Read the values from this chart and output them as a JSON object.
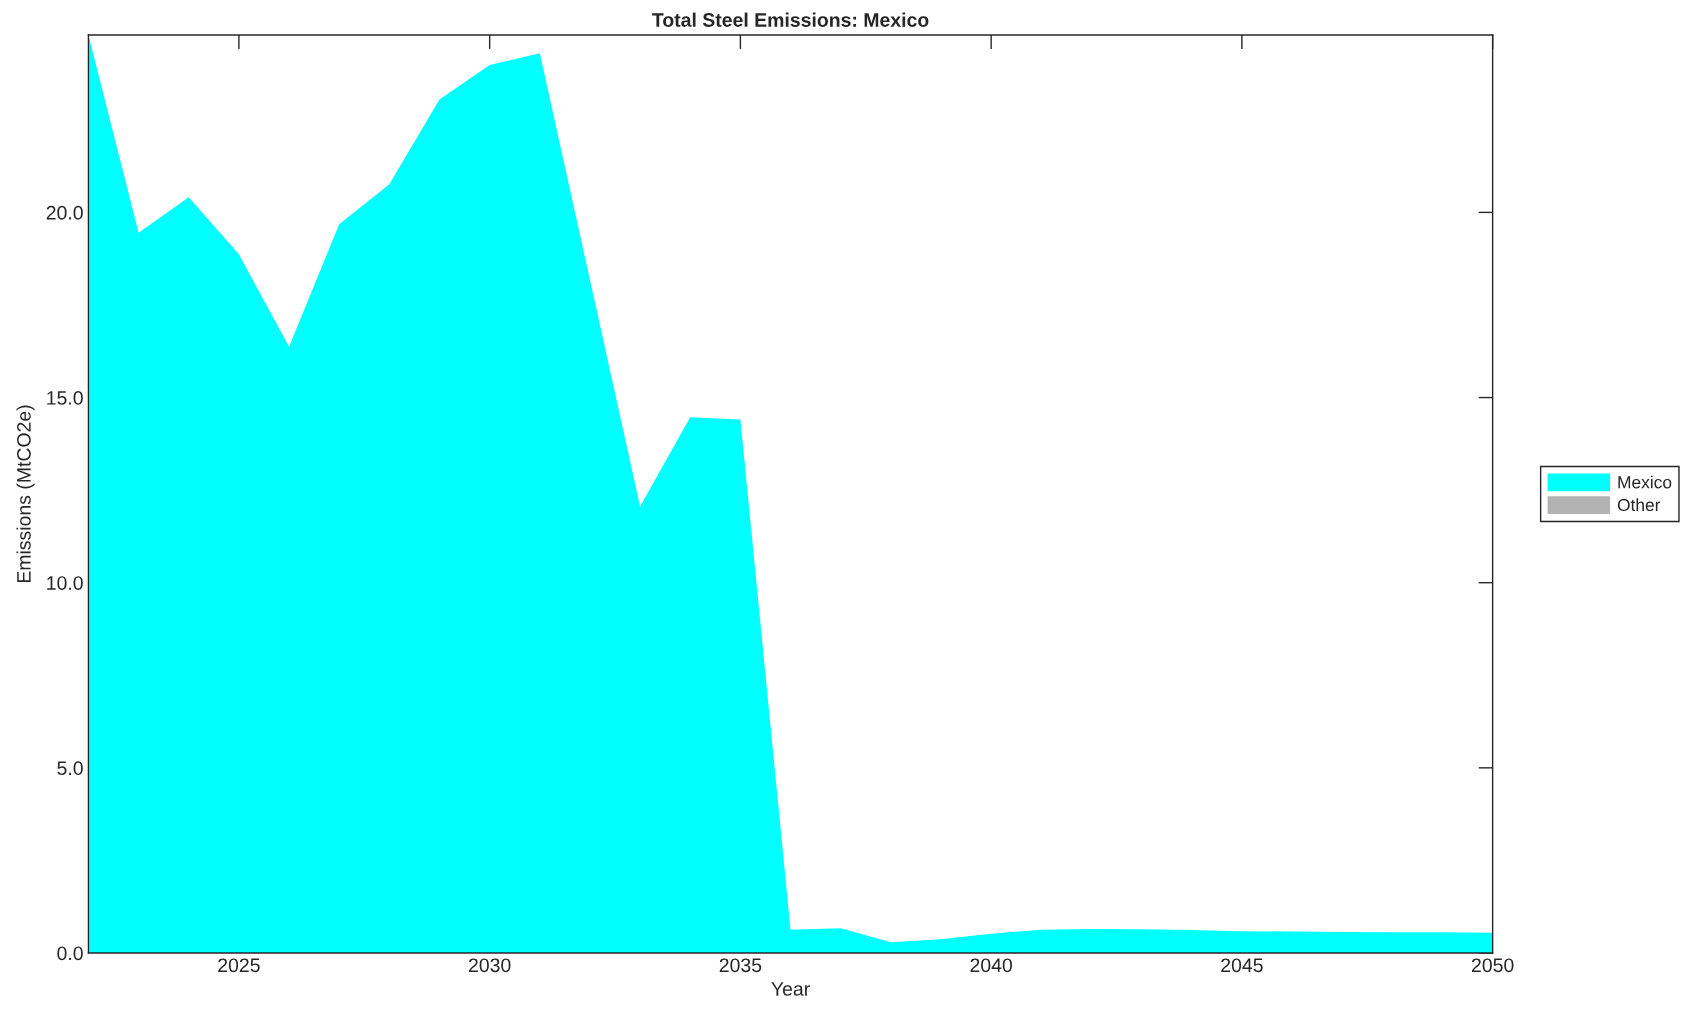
{
  "chart_data": {
    "type": "area",
    "title": "Total Steel Emissions: Mexico",
    "xlabel": "Year",
    "ylabel": "Emissions (MtCO2e)",
    "x": [
      2022,
      2023,
      2024,
      2025,
      2026,
      2027,
      2028,
      2029,
      2030,
      2031,
      2032,
      2033,
      2034,
      2035,
      2036,
      2037,
      2038,
      2039,
      2040,
      2041,
      2042,
      2043,
      2044,
      2045,
      2046,
      2047,
      2048,
      2049,
      2050
    ],
    "series": [
      {
        "name": "Mexico",
        "color": "#00ffff",
        "values": [
          24.79,
          19.45,
          20.41,
          18.87,
          16.37,
          19.68,
          20.76,
          23.05,
          23.98,
          24.3,
          18.18,
          12.06,
          14.47,
          14.41,
          0.63,
          0.67,
          0.29,
          0.37,
          0.52,
          0.63,
          0.65,
          0.64,
          0.62,
          0.59,
          0.58,
          0.57,
          0.56,
          0.56,
          0.55
        ]
      },
      {
        "name": "Other",
        "color": "#b3b3b3",
        "values": [
          null,
          null,
          null,
          null,
          null,
          null,
          null,
          null,
          null,
          null,
          null,
          null,
          null,
          null,
          null,
          null,
          null,
          null,
          null,
          null,
          null,
          null,
          null,
          null,
          null,
          null,
          null,
          null,
          null
        ]
      }
    ],
    "xlim": [
      2022,
      2050
    ],
    "xticks": [
      2025,
      2030,
      2035,
      2040,
      2045,
      2050
    ],
    "ylim": [
      0,
      24.79
    ],
    "yticks": [
      {
        "value": 0,
        "label": "0.0"
      },
      {
        "value": 5,
        "label": "5.0"
      },
      {
        "value": 10,
        "label": "10.0"
      },
      {
        "value": 15,
        "label": "15.0"
      },
      {
        "value": 20,
        "label": "20.0"
      }
    ],
    "legend": "right"
  }
}
